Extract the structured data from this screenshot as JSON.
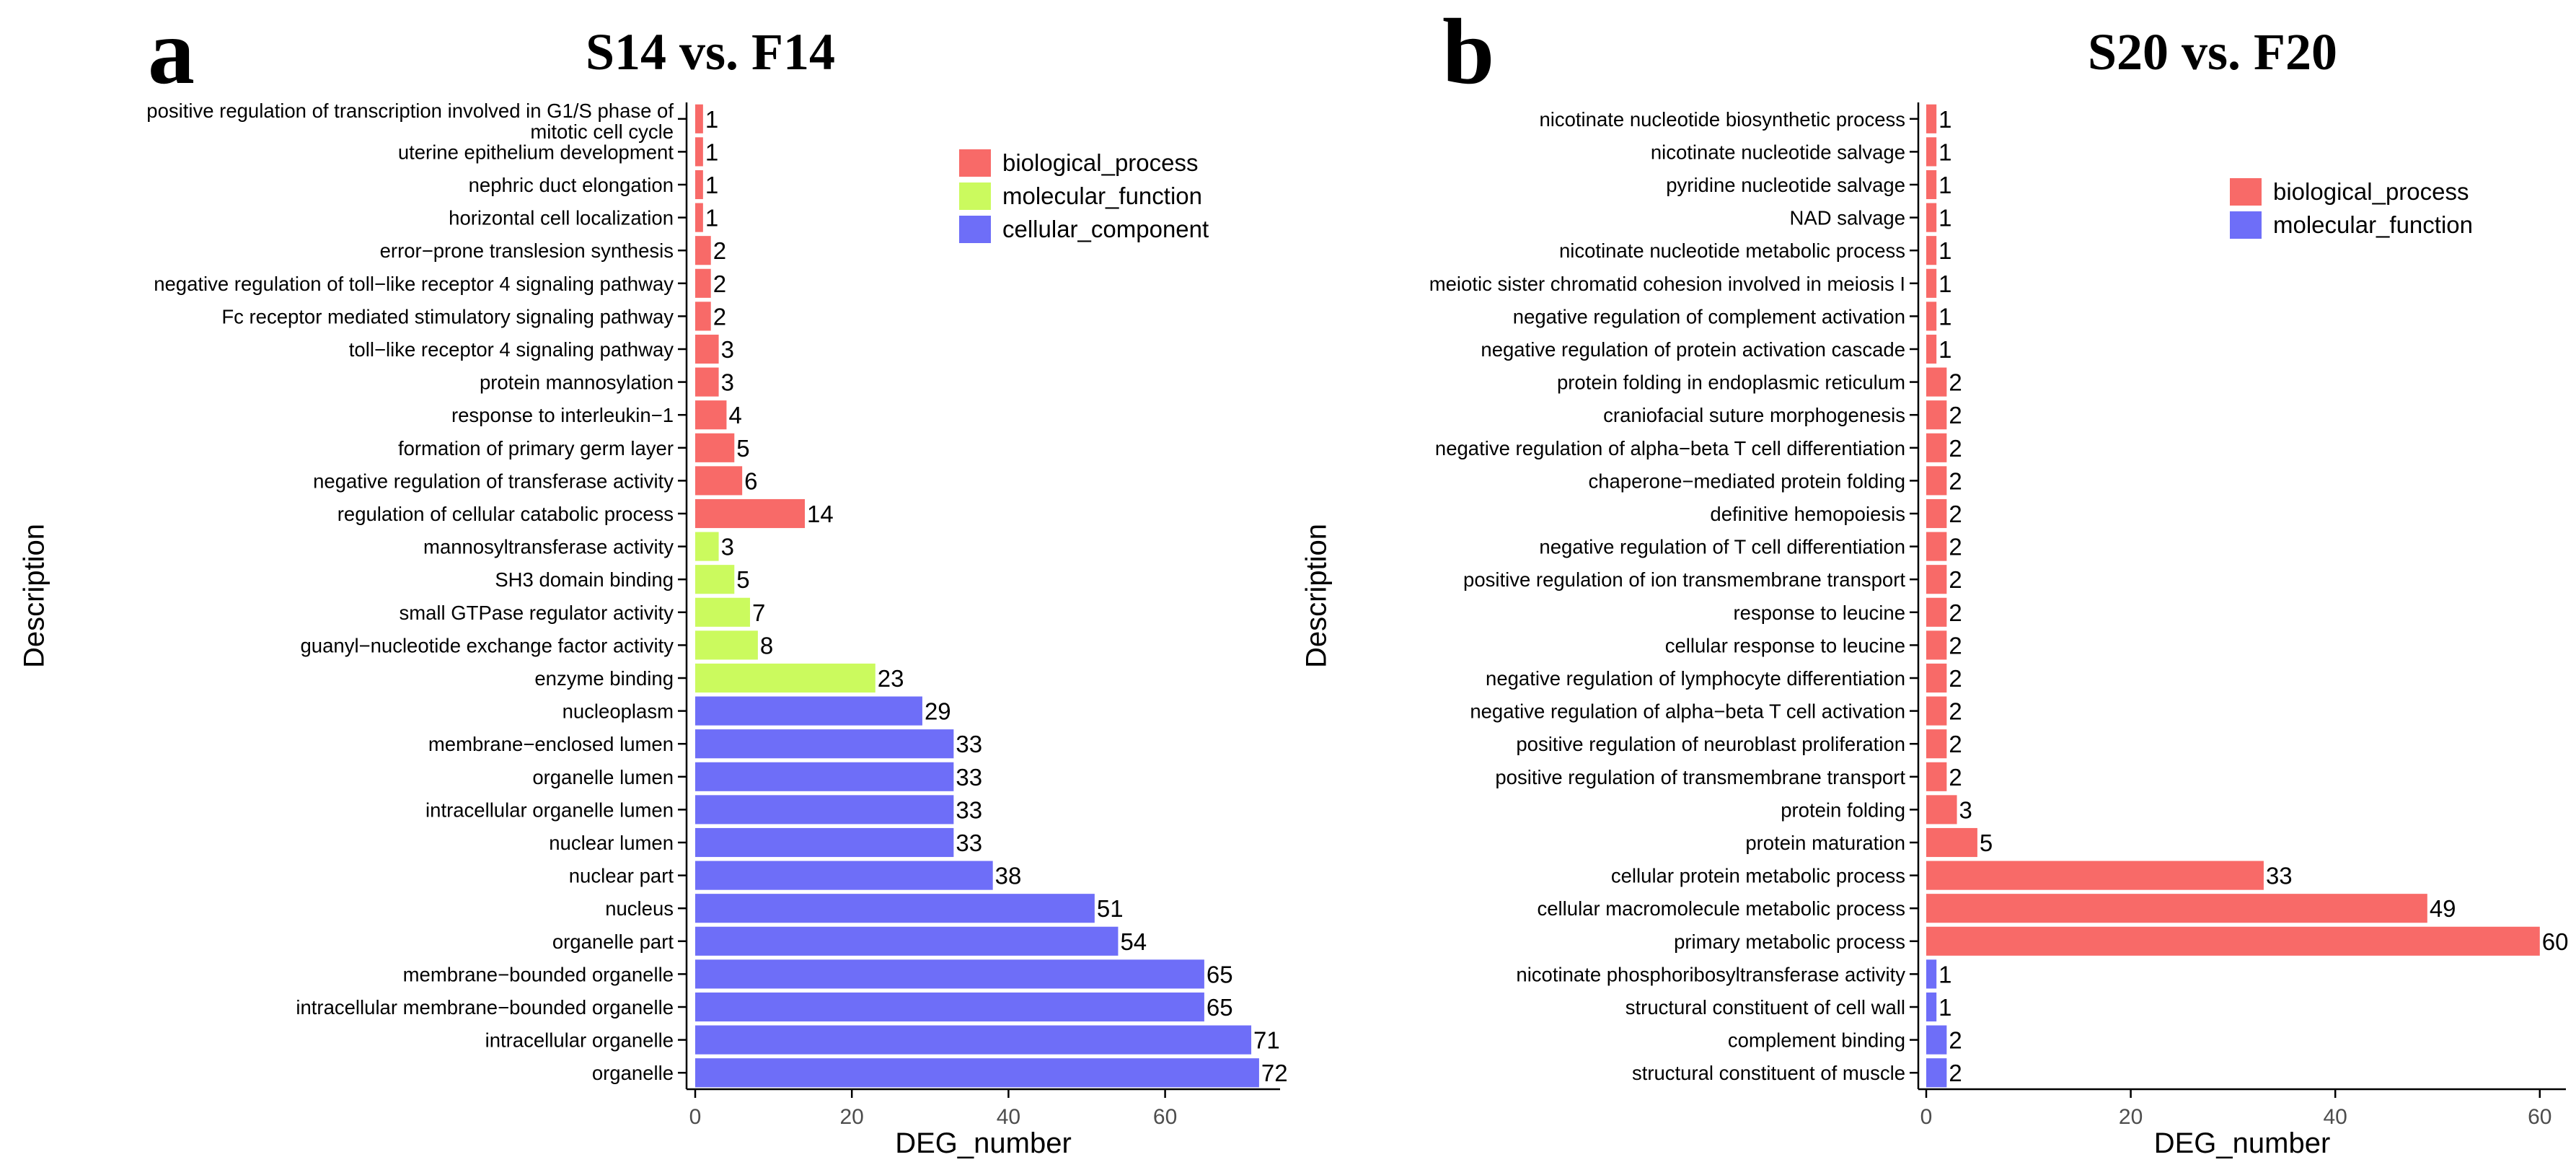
{
  "colors": {
    "biological_process": "#f86a68",
    "molecular_function_a": "#cbfa5e",
    "cellular_component": "#6e6ef8",
    "molecular_function_b": "#6e6ef8"
  },
  "chart_data": [
    {
      "type": "bar",
      "orientation": "horizontal",
      "panel_label": "a",
      "title": "S14 vs. F14",
      "xlabel": "DEG_number",
      "ylabel": "Description",
      "xlim": [
        -2,
        75
      ],
      "xticks": [
        0,
        20,
        40,
        60
      ],
      "legend": [
        {
          "name": "biological_process",
          "color": "#f86a68"
        },
        {
          "name": "molecular_function",
          "color": "#cbfa5e"
        },
        {
          "name": "cellular_component",
          "color": "#6e6ef8"
        }
      ],
      "categories": [
        [
          "positive regulation of transcription involved in G1/S phase of",
          "mitotic cell cycle"
        ],
        [
          "uterine epithelium development"
        ],
        [
          "nephric duct elongation"
        ],
        [
          "horizontal cell localization"
        ],
        [
          "error−prone translesion synthesis"
        ],
        [
          "negative regulation of toll−like receptor 4 signaling pathway"
        ],
        [
          "Fc receptor mediated stimulatory signaling pathway"
        ],
        [
          "toll−like receptor 4 signaling pathway"
        ],
        [
          "protein mannosylation"
        ],
        [
          "response to interleukin−1"
        ],
        [
          "formation of primary germ layer"
        ],
        [
          "negative regulation of transferase activity"
        ],
        [
          "regulation of cellular catabolic process"
        ],
        [
          "mannosyltransferase activity"
        ],
        [
          "SH3 domain binding"
        ],
        [
          "small GTPase regulator activity"
        ],
        [
          "guanyl−nucleotide exchange factor activity"
        ],
        [
          "enzyme binding"
        ],
        [
          "nucleoplasm"
        ],
        [
          "membrane−enclosed lumen"
        ],
        [
          "organelle lumen"
        ],
        [
          "intracellular organelle lumen"
        ],
        [
          "nuclear lumen"
        ],
        [
          "nuclear part"
        ],
        [
          "nucleus"
        ],
        [
          "organelle part"
        ],
        [
          "membrane−bounded organelle"
        ],
        [
          "intracellular membrane−bounded organelle"
        ],
        [
          "intracellular organelle"
        ],
        [
          "organelle"
        ]
      ],
      "values": [
        1,
        1,
        1,
        1,
        2,
        2,
        2,
        3,
        3,
        4,
        5,
        6,
        14,
        3,
        5,
        7,
        8,
        23,
        29,
        33,
        33,
        33,
        33,
        38,
        51,
        54,
        65,
        65,
        71,
        72
      ],
      "groups": [
        "biological_process",
        "biological_process",
        "biological_process",
        "biological_process",
        "biological_process",
        "biological_process",
        "biological_process",
        "biological_process",
        "biological_process",
        "biological_process",
        "biological_process",
        "biological_process",
        "biological_process",
        "molecular_function",
        "molecular_function",
        "molecular_function",
        "molecular_function",
        "molecular_function",
        "cellular_component",
        "cellular_component",
        "cellular_component",
        "cellular_component",
        "cellular_component",
        "cellular_component",
        "cellular_component",
        "cellular_component",
        "cellular_component",
        "cellular_component",
        "cellular_component",
        "cellular_component"
      ]
    },
    {
      "type": "bar",
      "orientation": "horizontal",
      "panel_label": "b",
      "title": "S20 vs. F20",
      "xlabel": "DEG_number",
      "ylabel": "Description",
      "xlim": [
        -0.5,
        63
      ],
      "xticks": [
        0,
        20,
        40,
        60
      ],
      "legend": [
        {
          "name": "biological_process",
          "color": "#f86a68"
        },
        {
          "name": "molecular_function",
          "color": "#6e6ef8"
        }
      ],
      "categories": [
        [
          "nicotinate nucleotide biosynthetic process"
        ],
        [
          "nicotinate nucleotide salvage"
        ],
        [
          "pyridine nucleotide salvage"
        ],
        [
          "NAD salvage"
        ],
        [
          "nicotinate nucleotide metabolic process"
        ],
        [
          "meiotic sister chromatid cohesion involved in meiosis I"
        ],
        [
          "negative regulation of complement activation"
        ],
        [
          "negative regulation of protein activation cascade"
        ],
        [
          "protein folding in endoplasmic reticulum"
        ],
        [
          "craniofacial suture morphogenesis"
        ],
        [
          "negative regulation of alpha−beta T cell differentiation"
        ],
        [
          "chaperone−mediated protein folding"
        ],
        [
          "definitive hemopoiesis"
        ],
        [
          "negative regulation of T cell differentiation"
        ],
        [
          "positive regulation of ion transmembrane transport"
        ],
        [
          "response to leucine"
        ],
        [
          "cellular response to leucine"
        ],
        [
          "negative regulation of lymphocyte differentiation"
        ],
        [
          "negative regulation of alpha−beta T cell activation"
        ],
        [
          "positive regulation of neuroblast proliferation"
        ],
        [
          "positive regulation of transmembrane transport"
        ],
        [
          "protein folding"
        ],
        [
          "protein maturation"
        ],
        [
          "cellular protein metabolic process"
        ],
        [
          "cellular macromolecule metabolic process"
        ],
        [
          "primary metabolic process"
        ],
        [
          "nicotinate phosphoribosyltransferase activity"
        ],
        [
          "structural constituent of cell wall"
        ],
        [
          "complement binding"
        ],
        [
          "structural constituent of muscle"
        ]
      ],
      "values": [
        1,
        1,
        1,
        1,
        1,
        1,
        1,
        1,
        2,
        2,
        2,
        2,
        2,
        2,
        2,
        2,
        2,
        2,
        2,
        2,
        2,
        3,
        5,
        33,
        49,
        60,
        1,
        1,
        2,
        2
      ],
      "groups": [
        "biological_process",
        "biological_process",
        "biological_process",
        "biological_process",
        "biological_process",
        "biological_process",
        "biological_process",
        "biological_process",
        "biological_process",
        "biological_process",
        "biological_process",
        "biological_process",
        "biological_process",
        "biological_process",
        "biological_process",
        "biological_process",
        "biological_process",
        "biological_process",
        "biological_process",
        "biological_process",
        "biological_process",
        "biological_process",
        "biological_process",
        "biological_process",
        "biological_process",
        "biological_process",
        "molecular_function",
        "molecular_function",
        "molecular_function",
        "molecular_function"
      ]
    }
  ]
}
